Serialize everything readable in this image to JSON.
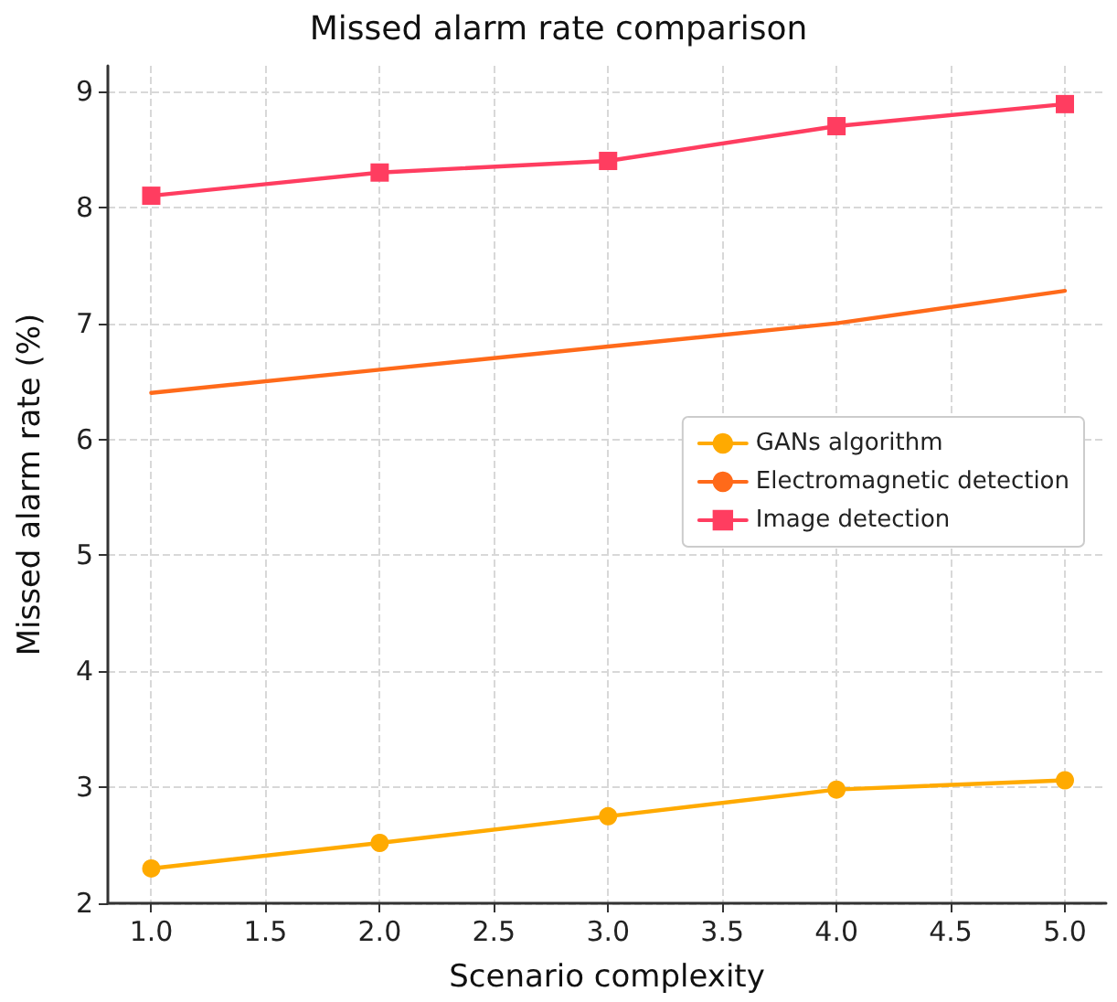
{
  "chart_data": {
    "type": "line",
    "title": "Missed alarm rate comparison",
    "xlabel": "Scenario complexity",
    "ylabel": "Missed alarm rate (%)",
    "x": [
      1,
      2,
      3,
      4,
      5
    ],
    "series": [
      {
        "name": "GANs algorithm",
        "color": "#ffaa00",
        "marker": "circle",
        "values": [
          2.3,
          2.52,
          2.75,
          2.98,
          3.06
        ]
      },
      {
        "name": "Electromagnetic detection",
        "color": "#ff6a1a",
        "marker": "none",
        "values": [
          6.4,
          6.6,
          6.8,
          7.0,
          7.28
        ]
      },
      {
        "name": "Image detection",
        "color": "#ff3d60",
        "marker": "square",
        "values": [
          8.1,
          8.3,
          8.4,
          8.7,
          8.89
        ]
      }
    ],
    "xlim": [
      0.81,
      5.18
    ],
    "xticks": [
      {
        "value": 1,
        "label": "1.0"
      },
      {
        "value": 1.5,
        "label": "1.5"
      },
      {
        "value": 2,
        "label": "2.0"
      },
      {
        "value": 2.5,
        "label": "2.5"
      },
      {
        "value": 3,
        "label": "3.0"
      },
      {
        "value": 3.5,
        "label": "3.5"
      },
      {
        "value": 4,
        "label": "4.0"
      },
      {
        "value": 4.5,
        "label": "4.5"
      },
      {
        "value": 5,
        "label": "5.0"
      }
    ],
    "ylim": [
      2,
      9.22
    ],
    "yticks": [
      2,
      3,
      4,
      5,
      6,
      7,
      8,
      9
    ],
    "grid": true,
    "legend": "right",
    "line_style": "solid"
  }
}
